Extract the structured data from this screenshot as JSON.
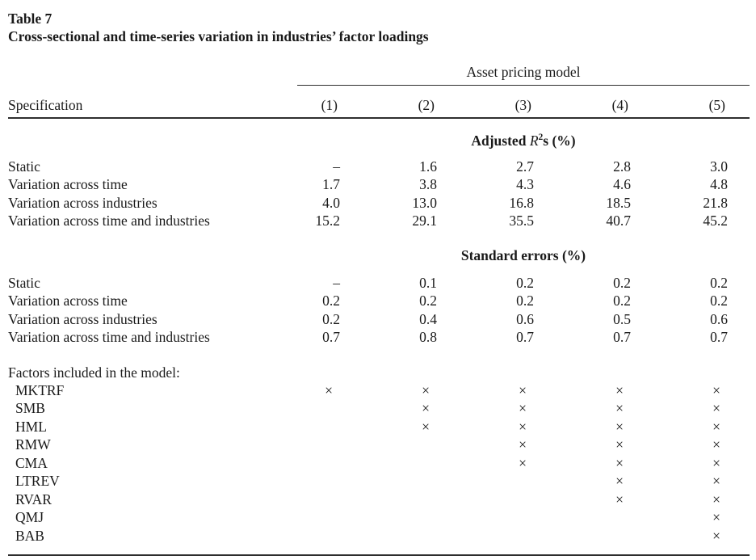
{
  "colors": {
    "text": "#1a1a1a",
    "rule": "#2e2e2e",
    "background": "#ffffff"
  },
  "table": {
    "label": "Table 7",
    "title": "Cross-sectional and time-series variation in industries’ factor loadings",
    "group_header": "Asset pricing model",
    "row_header": "Specification",
    "columns": [
      "(1)",
      "(2)",
      "(3)",
      "(4)",
      "(5)"
    ],
    "sections": [
      {
        "id": "adjusted-r2",
        "heading": {
          "pre": "Adjusted ",
          "math_var": "R",
          "math_sup": "2",
          "post": "s (%)"
        },
        "rows": [
          {
            "label": "Static",
            "values": [
              "–",
              "1.6",
              "2.7",
              "2.8",
              "3.0"
            ]
          },
          {
            "label": "Variation across time",
            "values": [
              "1.7",
              "3.8",
              "4.3",
              "4.6",
              "4.8"
            ]
          },
          {
            "label": "Variation across industries",
            "values": [
              "4.0",
              "13.0",
              "16.8",
              "18.5",
              "21.8"
            ]
          },
          {
            "label": "Variation across time and industries",
            "values": [
              "15.2",
              "29.1",
              "35.5",
              "40.7",
              "45.2"
            ]
          }
        ]
      },
      {
        "id": "standard-errors",
        "heading": {
          "pre": "Standard errors (%)",
          "math_var": "",
          "math_sup": "",
          "post": ""
        },
        "rows": [
          {
            "label": "Static",
            "values": [
              "–",
              "0.1",
              "0.2",
              "0.2",
              "0.2"
            ]
          },
          {
            "label": "Variation across time",
            "values": [
              "0.2",
              "0.2",
              "0.2",
              "0.2",
              "0.2"
            ]
          },
          {
            "label": "Variation across industries",
            "values": [
              "0.2",
              "0.4",
              "0.6",
              "0.5",
              "0.6"
            ]
          },
          {
            "label": "Variation across time and industries",
            "values": [
              "0.7",
              "0.8",
              "0.7",
              "0.7",
              "0.7"
            ]
          }
        ]
      }
    ],
    "factors": {
      "heading": "Factors included in the model:",
      "mark": "×",
      "rows": [
        {
          "label": "MKTRF",
          "included": [
            true,
            true,
            true,
            true,
            true
          ]
        },
        {
          "label": "SMB",
          "included": [
            false,
            true,
            true,
            true,
            true
          ]
        },
        {
          "label": "HML",
          "included": [
            false,
            true,
            true,
            true,
            true
          ]
        },
        {
          "label": "RMW",
          "included": [
            false,
            false,
            true,
            true,
            true
          ]
        },
        {
          "label": "CMA",
          "included": [
            false,
            false,
            true,
            true,
            true
          ]
        },
        {
          "label": "LTREV",
          "included": [
            false,
            false,
            false,
            true,
            true
          ]
        },
        {
          "label": "RVAR",
          "included": [
            false,
            false,
            false,
            true,
            true
          ]
        },
        {
          "label": "QMJ",
          "included": [
            false,
            false,
            false,
            false,
            true
          ]
        },
        {
          "label": "BAB",
          "included": [
            false,
            false,
            false,
            false,
            true
          ]
        }
      ]
    }
  }
}
